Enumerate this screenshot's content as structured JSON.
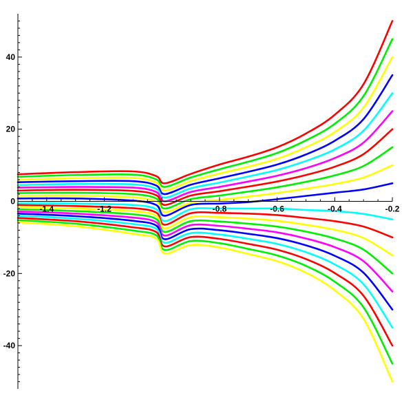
{
  "chart_data": {
    "type": "line",
    "title": "",
    "xlabel": "",
    "ylabel": "",
    "xlim": [
      -1.5,
      -0.2
    ],
    "ylim": [
      -52,
      52
    ],
    "grid": false,
    "legend": "none",
    "x_ticks": [
      {
        "value": -1.4,
        "label": "-1.4"
      },
      {
        "value": -1.2,
        "label": "-1.2"
      },
      {
        "value": -0.8,
        "label": "-0.8"
      },
      {
        "value": -0.6,
        "label": "-0.6"
      },
      {
        "value": -0.4,
        "label": "-0.4"
      },
      {
        "value": -0.2,
        "label": "-0.2"
      }
    ],
    "y_ticks": [
      {
        "value": 40,
        "label": "40"
      },
      {
        "value": 20,
        "label": "20"
      },
      {
        "value": 0,
        "label": "0"
      },
      {
        "value": -20,
        "label": "-20"
      },
      {
        "value": -40,
        "label": "-40"
      }
    ],
    "singularity_x": -1.0,
    "series": [
      {
        "color": "#ff0000",
        "x": [
          -1.5,
          -1.3,
          -1.1,
          -1.02,
          -0.99,
          -0.9,
          -0.8,
          -0.7,
          -0.6,
          -0.5,
          -0.4,
          -0.3,
          -0.2
        ],
        "y": [
          7.5,
          8.1,
          8.3,
          7.0,
          5.0,
          7.6,
          10.2,
          12.4,
          15.0,
          18.8,
          24.0,
          32.5,
          50.0
        ]
      },
      {
        "color": "#00ee00",
        "x": [
          -1.5,
          -1.3,
          -1.1,
          -1.02,
          -0.99,
          -0.9,
          -0.8,
          -0.7,
          -0.6,
          -0.5,
          -0.4,
          -0.3,
          -0.2
        ],
        "y": [
          6.8,
          7.3,
          7.4,
          6.1,
          4.0,
          6.6,
          8.9,
          11.0,
          13.4,
          16.9,
          21.5,
          29.2,
          45.0
        ]
      },
      {
        "color": "#ffff00",
        "x": [
          -1.5,
          -1.3,
          -1.1,
          -1.02,
          -0.99,
          -0.9,
          -0.8,
          -0.7,
          -0.6,
          -0.5,
          -0.4,
          -0.3,
          -0.2
        ],
        "y": [
          6.0,
          6.4,
          6.5,
          5.2,
          3.0,
          5.6,
          7.7,
          9.6,
          11.8,
          15.0,
          19.2,
          26.0,
          40.0
        ]
      },
      {
        "color": "#0000ff",
        "x": [
          -1.5,
          -1.3,
          -1.1,
          -1.02,
          -0.99,
          -0.9,
          -0.8,
          -0.7,
          -0.6,
          -0.5,
          -0.4,
          -0.3,
          -0.2
        ],
        "y": [
          5.3,
          5.6,
          5.6,
          4.4,
          2.0,
          4.6,
          6.4,
          8.2,
          10.2,
          13.0,
          16.8,
          22.8,
          35.0
        ]
      },
      {
        "color": "#00ffff",
        "x": [
          -1.5,
          -1.3,
          -1.1,
          -1.02,
          -0.99,
          -0.9,
          -0.8,
          -0.7,
          -0.6,
          -0.5,
          -0.4,
          -0.3,
          -0.2
        ],
        "y": [
          4.5,
          4.8,
          4.7,
          3.5,
          1.0,
          3.6,
          5.2,
          6.9,
          8.7,
          11.2,
          14.4,
          19.6,
          30.0
        ]
      },
      {
        "color": "#ff00ff",
        "x": [
          -1.5,
          -1.3,
          -1.1,
          -1.02,
          -0.99,
          -0.9,
          -0.8,
          -0.7,
          -0.6,
          -0.5,
          -0.4,
          -0.3,
          -0.2
        ],
        "y": [
          3.8,
          4.0,
          3.8,
          2.6,
          0.0,
          2.6,
          4.0,
          5.5,
          7.1,
          9.2,
          12.0,
          16.3,
          25.0
        ]
      },
      {
        "color": "#ff0000",
        "x": [
          -1.5,
          -1.3,
          -1.1,
          -1.02,
          -0.99,
          -0.9,
          -0.8,
          -0.7,
          -0.6,
          -0.5,
          -0.4,
          -0.3,
          -0.2
        ],
        "y": [
          3.0,
          3.2,
          2.9,
          1.7,
          -1.0,
          1.6,
          2.8,
          4.1,
          5.5,
          7.3,
          9.6,
          13.1,
          20.0
        ]
      },
      {
        "color": "#00ee00",
        "x": [
          -1.5,
          -1.3,
          -1.1,
          -1.02,
          -0.99,
          -0.9,
          -0.8,
          -0.7,
          -0.6,
          -0.5,
          -0.4,
          -0.3,
          -0.2
        ],
        "y": [
          2.3,
          2.4,
          2.0,
          0.8,
          -2.0,
          0.6,
          1.6,
          2.7,
          3.9,
          5.4,
          7.2,
          9.8,
          15.0
        ]
      },
      {
        "color": "#ffff00",
        "x": [
          -1.5,
          -1.3,
          -1.1,
          -1.02,
          -0.99,
          -0.9,
          -0.8,
          -0.7,
          -0.6,
          -0.5,
          -0.4,
          -0.3,
          -0.2
        ],
        "y": [
          1.5,
          1.6,
          1.1,
          -0.1,
          -3.0,
          -0.4,
          0.4,
          1.3,
          2.3,
          3.5,
          4.8,
          6.6,
          10.0
        ]
      },
      {
        "color": "#0000ff",
        "x": [
          -1.5,
          -1.3,
          -1.1,
          -1.02,
          -0.99,
          -0.9,
          -0.8,
          -0.7,
          -0.6,
          -0.5,
          -0.4,
          -0.3,
          -0.2
        ],
        "y": [
          0.8,
          0.8,
          0.2,
          -1.0,
          -4.0,
          -1.0,
          -0.6,
          -0.2,
          0.6,
          1.5,
          2.4,
          3.3,
          5.0
        ]
      },
      {
        "color": "#00ffff",
        "x": [
          -1.5,
          -1.3,
          -1.1,
          -1.02,
          -0.99,
          -0.9,
          -0.8,
          -0.7,
          -0.6,
          -0.5,
          -0.4,
          -0.3,
          -0.2
        ],
        "y": [
          -0.5,
          -0.6,
          -1.0,
          -2.2,
          -5.5,
          -2.2,
          -2.0,
          -2.0,
          -2.0,
          -2.4,
          -2.7,
          -3.5,
          -5.0
        ]
      },
      {
        "color": "#ff0000",
        "x": [
          -1.5,
          -1.3,
          -1.1,
          -1.02,
          -0.99,
          -0.9,
          -0.8,
          -0.7,
          -0.6,
          -0.5,
          -0.4,
          -0.3,
          -0.2
        ],
        "y": [
          -1.0,
          -1.3,
          -1.9,
          -3.1,
          -6.5,
          -3.3,
          -3.2,
          -3.4,
          -3.8,
          -4.6,
          -5.5,
          -7.0,
          -10.0
        ]
      },
      {
        "color": "#ffff00",
        "x": [
          -1.5,
          -1.3,
          -1.1,
          -1.02,
          -0.99,
          -0.9,
          -0.8,
          -0.7,
          -0.6,
          -0.5,
          -0.4,
          -0.3,
          -0.2
        ],
        "y": [
          -1.6,
          -2.0,
          -2.7,
          -4.0,
          -7.5,
          -4.4,
          -4.4,
          -4.8,
          -5.4,
          -6.5,
          -7.9,
          -10.2,
          -15.0
        ]
      },
      {
        "color": "#00ee00",
        "x": [
          -1.5,
          -1.3,
          -1.1,
          -1.02,
          -0.99,
          -0.9,
          -0.8,
          -0.7,
          -0.6,
          -0.5,
          -0.4,
          -0.3,
          -0.2
        ],
        "y": [
          -2.2,
          -2.7,
          -3.6,
          -4.9,
          -8.5,
          -5.5,
          -5.6,
          -6.2,
          -7.0,
          -8.4,
          -10.3,
          -13.4,
          -20.0
        ]
      },
      {
        "color": "#ff00ff",
        "x": [
          -1.5,
          -1.3,
          -1.1,
          -1.02,
          -0.99,
          -0.9,
          -0.8,
          -0.7,
          -0.6,
          -0.5,
          -0.4,
          -0.3,
          -0.2
        ],
        "y": [
          -2.8,
          -3.4,
          -4.5,
          -5.8,
          -9.5,
          -6.6,
          -6.8,
          -7.6,
          -8.6,
          -10.3,
          -12.7,
          -16.6,
          -25.0
        ]
      },
      {
        "color": "#0000ff",
        "x": [
          -1.5,
          -1.3,
          -1.1,
          -1.02,
          -0.99,
          -0.9,
          -0.8,
          -0.7,
          -0.6,
          -0.5,
          -0.4,
          -0.3,
          -0.2
        ],
        "y": [
          -3.4,
          -4.1,
          -5.4,
          -6.7,
          -10.5,
          -7.7,
          -8.0,
          -9.0,
          -10.2,
          -12.2,
          -15.1,
          -19.8,
          -30.0
        ]
      },
      {
        "color": "#00ffff",
        "x": [
          -1.5,
          -1.3,
          -1.1,
          -1.02,
          -0.99,
          -0.9,
          -0.8,
          -0.7,
          -0.6,
          -0.5,
          -0.4,
          -0.3,
          -0.2
        ],
        "y": [
          -4.0,
          -4.8,
          -6.3,
          -7.6,
          -11.5,
          -8.8,
          -9.2,
          -10.4,
          -11.8,
          -14.1,
          -17.5,
          -23.0,
          -35.0
        ]
      },
      {
        "color": "#ff0000",
        "x": [
          -1.5,
          -1.3,
          -1.1,
          -1.02,
          -0.99,
          -0.9,
          -0.8,
          -0.7,
          -0.6,
          -0.5,
          -0.4,
          -0.3,
          -0.2
        ],
        "y": [
          -4.6,
          -5.5,
          -7.2,
          -8.5,
          -12.5,
          -9.9,
          -10.4,
          -11.8,
          -13.4,
          -16.0,
          -19.9,
          -26.2,
          -40.0
        ]
      },
      {
        "color": "#00ee00",
        "x": [
          -1.5,
          -1.3,
          -1.1,
          -1.02,
          -0.99,
          -0.9,
          -0.8,
          -0.7,
          -0.6,
          -0.5,
          -0.4,
          -0.3,
          -0.2
        ],
        "y": [
          -5.2,
          -6.2,
          -8.1,
          -9.4,
          -13.5,
          -11.0,
          -11.6,
          -13.2,
          -15.0,
          -17.9,
          -22.3,
          -29.4,
          -45.0
        ]
      },
      {
        "color": "#ffff00",
        "x": [
          -1.5,
          -1.3,
          -1.1,
          -1.02,
          -0.99,
          -0.9,
          -0.8,
          -0.7,
          -0.6,
          -0.5,
          -0.4,
          -0.3,
          -0.2
        ],
        "y": [
          -5.8,
          -6.9,
          -9.0,
          -10.3,
          -14.5,
          -12.1,
          -12.8,
          -14.6,
          -16.6,
          -19.8,
          -24.7,
          -32.6,
          -50.0
        ]
      }
    ]
  }
}
